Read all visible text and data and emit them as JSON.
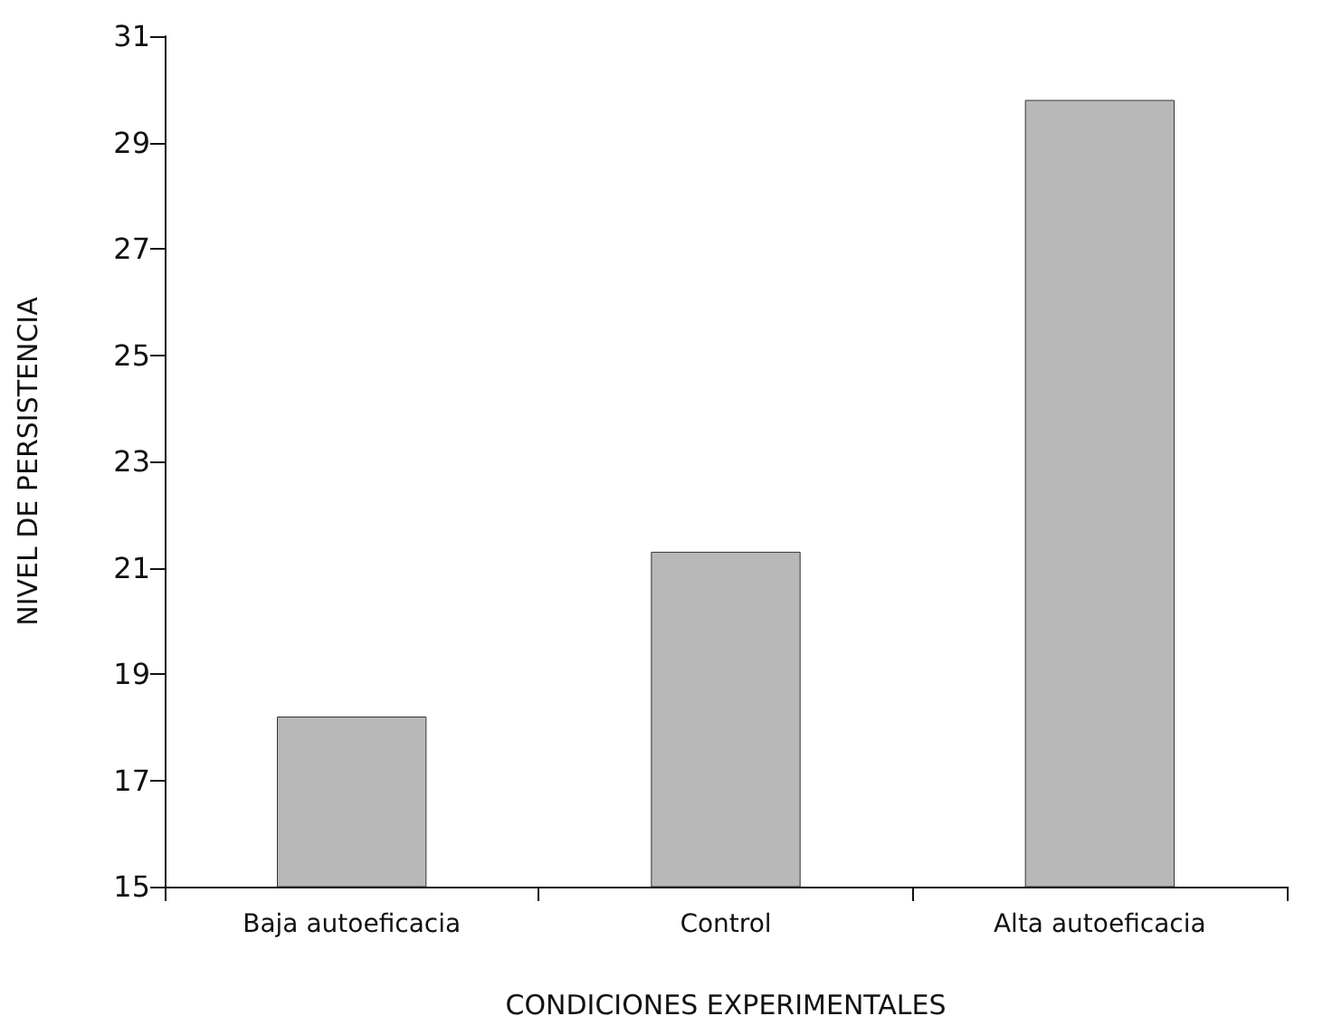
{
  "chart_data": {
    "type": "bar",
    "xlabel": "CONDICIONES EXPERIMENTALES",
    "ylabel": "NIVEL DE PERSISTENCIA",
    "categories": [
      "Baja autoeficacia",
      "Control",
      "Alta autoeficacia"
    ],
    "values": [
      18.2,
      21.3,
      29.8
    ],
    "color": "#b8b8b8",
    "ylim": [
      15,
      31
    ],
    "yticks": [
      15,
      17,
      19,
      21,
      23,
      25,
      27,
      29,
      31
    ],
    "grid": false
  }
}
